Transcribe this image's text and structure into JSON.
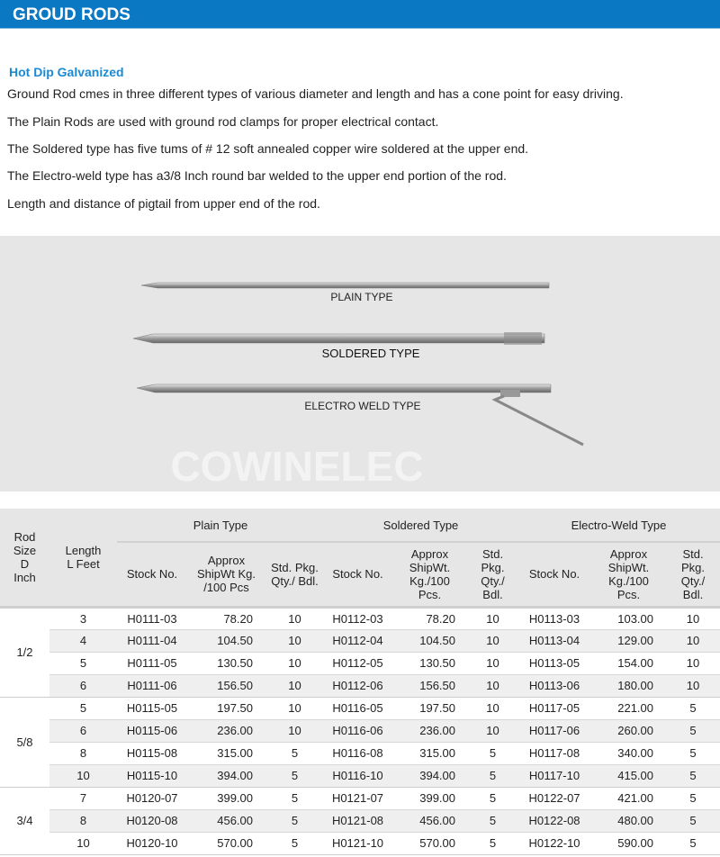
{
  "header": {
    "title": "GROUD RODS"
  },
  "intro": {
    "subtitle": "Hot Dip Galvanized",
    "paragraphs": [
      "Ground Rod cmes in three different types of various diameter and length and has a cone point for easy driving.",
      "The Plain Rods are used with ground rod clamps for proper electrical contact.",
      "The Soldered type has five tums of # 12 soft annealed copper wire soldered at the upper end.",
      "The Electro-weld type has a3/8 Inch round bar welded to the upper end portion of the rod.",
      "Length and distance of pigtail from upper end of the rod."
    ]
  },
  "figure": {
    "watermark": "COWINELEC",
    "labels": {
      "plain": "PLAIN TYPE",
      "soldered": "SOLDERED TYPE",
      "electro": "ELECTRO WELD TYPE"
    }
  },
  "table": {
    "headers": {
      "rod_size": "Rod Size D Inch",
      "length": "Length L Feet",
      "groups": [
        "Plain Type",
        "Soldered Type",
        "Electro-Weld Type"
      ],
      "sub": [
        "Stock No.",
        "Approx ShipWt Kg. /100 Pcs",
        "Std. Pkg. Qty./ Bdl.",
        "Stock No.",
        "Approx ShipWt. Kg./100 Pcs.",
        "Std. Pkg. Qty./ Bdl.",
        "Stock No.",
        "Approx ShipWt. Kg./100 Pcs.",
        "Std. Pkg. Qty./ Bdl."
      ]
    },
    "groups": [
      {
        "size": "1/2",
        "rows": [
          [
            "3",
            "H0111-03",
            "78.20",
            "10",
            "H0112-03",
            "78.20",
            "10",
            "H0113-03",
            "103.00",
            "10"
          ],
          [
            "4",
            "H0111-04",
            "104.50",
            "10",
            "H0112-04",
            "104.50",
            "10",
            "H0113-04",
            "129.00",
            "10"
          ],
          [
            "5",
            "H0111-05",
            "130.50",
            "10",
            "H0112-05",
            "130.50",
            "10",
            "H0113-05",
            "154.00",
            "10"
          ],
          [
            "6",
            "H0111-06",
            "156.50",
            "10",
            "H0112-06",
            "156.50",
            "10",
            "H0113-06",
            "180.00",
            "10"
          ]
        ]
      },
      {
        "size": "5/8",
        "rows": [
          [
            "5",
            "H0115-05",
            "197.50",
            "10",
            "H0116-05",
            "197.50",
            "10",
            "H0117-05",
            "221.00",
            "5"
          ],
          [
            "6",
            "H0115-06",
            "236.00",
            "10",
            "H0116-06",
            "236.00",
            "10",
            "H0117-06",
            "260.00",
            "5"
          ],
          [
            "8",
            "H0115-08",
            "315.00",
            "5",
            "H0116-08",
            "315.00",
            "5",
            "H0117-08",
            "340.00",
            "5"
          ],
          [
            "10",
            "H0115-10",
            "394.00",
            "5",
            "H0116-10",
            "394.00",
            "5",
            "H0117-10",
            "415.00",
            "5"
          ]
        ]
      },
      {
        "size": "3/4",
        "rows": [
          [
            "7",
            "H0120-07",
            "399.00",
            "5",
            "H0121-07",
            "399.00",
            "5",
            "H0122-07",
            "421.00",
            "5"
          ],
          [
            "8",
            "H0120-08",
            "456.00",
            "5",
            "H0121-08",
            "456.00",
            "5",
            "H0122-08",
            "480.00",
            "5"
          ],
          [
            "10",
            "H0120-10",
            "570.00",
            "5",
            "H0121-10",
            "570.00",
            "5",
            "H0122-10",
            "590.00",
            "5"
          ]
        ]
      }
    ]
  }
}
